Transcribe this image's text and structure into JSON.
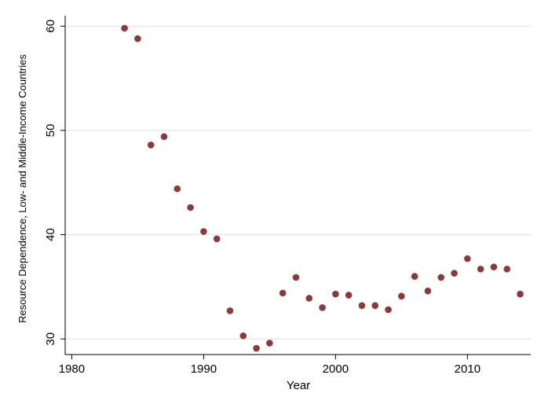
{
  "chart_data": {
    "type": "scatter",
    "title": "",
    "xlabel": "Year",
    "ylabel": "Resource Dependence, Low- and Middle-Income Countries",
    "xlim": [
      1979.5,
      2014.8
    ],
    "ylim": [
      28.5,
      61.0
    ],
    "xticks": [
      1980,
      1990,
      2000,
      2010
    ],
    "yticks": [
      30,
      40,
      50,
      60
    ],
    "grid": "horizontal",
    "legend": "none",
    "marker_color": "#8b3a3a",
    "grid_color": "#e6e6e6",
    "series": [
      {
        "x": [
          1984,
          1985,
          1986,
          1987,
          1988,
          1989,
          1990,
          1991,
          1992,
          1993,
          1994,
          1995,
          1996,
          1997,
          1998,
          1999,
          2000,
          2001,
          2002,
          2003,
          2004,
          2005,
          2006,
          2007,
          2008,
          2009,
          2010,
          2011,
          2012,
          2013,
          2014
        ],
        "y": [
          59.8,
          58.8,
          48.6,
          49.4,
          44.4,
          42.6,
          40.3,
          39.6,
          32.7,
          30.3,
          29.1,
          29.6,
          34.4,
          35.9,
          33.9,
          33.0,
          34.3,
          34.2,
          33.2,
          33.2,
          32.8,
          34.1,
          36.0,
          34.6,
          35.9,
          36.3,
          37.7,
          36.7,
          36.9,
          36.7,
          34.3
        ]
      }
    ]
  }
}
